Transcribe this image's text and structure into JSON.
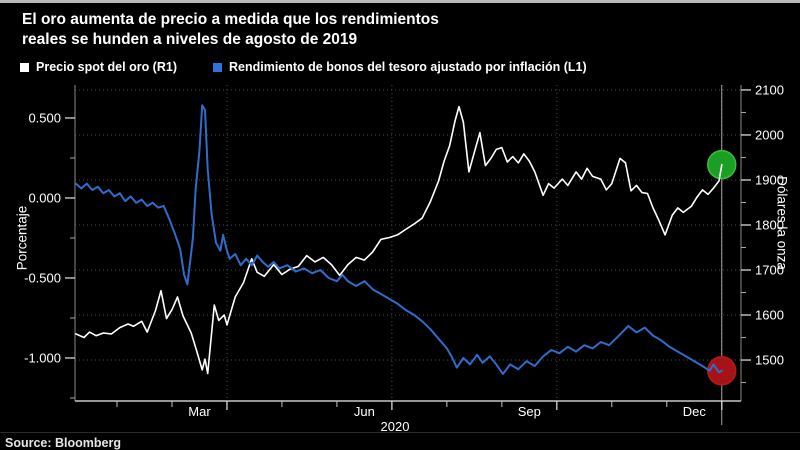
{
  "header": {
    "title_line1": "El oro aumenta de precio a medida que los rendimientos",
    "title_line2": "reales se hunden a niveles de agosto de 2019"
  },
  "legend": {
    "items": [
      {
        "label": "Precio spot del oro (R1)",
        "swatch_color": "#ffffff"
      },
      {
        "label": "Rendimiento de bonos del tesoro ajustado por inflación (L1)",
        "swatch_color": "#2f72db"
      }
    ]
  },
  "footer": {
    "source": "Source: Bloomberg"
  },
  "chart_data": {
    "type": "line",
    "title": "El oro aumenta de precio a medida que los rendimientos reales se hunden a niveles de agosto de 2019",
    "x_unit": "months since 2020-01-01",
    "x_axis": {
      "year_label": "2020",
      "range": [
        0.236,
        12.35
      ],
      "month_labels": [
        {
          "text": "Mar",
          "m": 2.5
        },
        {
          "text": "Jun",
          "m": 5.5
        },
        {
          "text": "Sep",
          "m": 8.5
        },
        {
          "text": "Dec",
          "m": 11.5
        }
      ],
      "major_tick_months": [
        3,
        6,
        9,
        12
      ],
      "minor_tick_months": [
        1,
        2,
        4,
        5,
        7,
        8,
        10,
        11
      ],
      "grid_months": [
        3,
        6,
        9,
        12
      ]
    },
    "left_axis": {
      "title": "Porcentaje",
      "range": [
        -1.269,
        0.706
      ],
      "ticks": [
        0.5,
        0.0,
        -0.5,
        -1.0
      ],
      "tick_labels": [
        "0.500",
        "0.000",
        "-0.500",
        "-1.000"
      ],
      "minor_ticks": [
        0.25,
        -0.25,
        -0.75,
        -1.25
      ]
    },
    "right_axis": {
      "title": "Dólares la onza",
      "range": [
        1409,
        2111
      ],
      "ticks": [
        2100,
        2000,
        1900,
        1800,
        1700,
        1600,
        1500
      ],
      "tick_labels": [
        "2100",
        "2000",
        "1900",
        "1800",
        "1700",
        "1600",
        "1500"
      ],
      "minor_ticks": [
        2050,
        1950,
        1850,
        1750,
        1650,
        1550,
        1450
      ],
      "gridlines": true
    },
    "crosshair_m": 12.0,
    "series": [
      {
        "name": "Precio spot del oro (R1)",
        "axis": "right",
        "color": "#ffffff",
        "width": 1.6,
        "end_marker": {
          "fill": "#1b9e24",
          "stroke": "#3bbf3b",
          "radius": 14
        },
        "points": [
          [
            0.25,
            1558
          ],
          [
            0.4,
            1550
          ],
          [
            0.5,
            1562
          ],
          [
            0.62,
            1554
          ],
          [
            0.75,
            1560
          ],
          [
            0.9,
            1558
          ],
          [
            1.05,
            1572
          ],
          [
            1.2,
            1580
          ],
          [
            1.3,
            1575
          ],
          [
            1.45,
            1586
          ],
          [
            1.55,
            1562
          ],
          [
            1.7,
            1610
          ],
          [
            1.8,
            1654
          ],
          [
            1.9,
            1592
          ],
          [
            2.0,
            1612
          ],
          [
            2.1,
            1640
          ],
          [
            2.2,
            1598
          ],
          [
            2.35,
            1560
          ],
          [
            2.45,
            1520
          ],
          [
            2.55,
            1478
          ],
          [
            2.6,
            1502
          ],
          [
            2.65,
            1470
          ],
          [
            2.77,
            1622
          ],
          [
            2.85,
            1588
          ],
          [
            2.95,
            1600
          ],
          [
            3.0,
            1578
          ],
          [
            3.15,
            1640
          ],
          [
            3.3,
            1672
          ],
          [
            3.45,
            1725
          ],
          [
            3.55,
            1695
          ],
          [
            3.68,
            1686
          ],
          [
            3.85,
            1712
          ],
          [
            4.0,
            1690
          ],
          [
            4.15,
            1702
          ],
          [
            4.3,
            1708
          ],
          [
            4.45,
            1732
          ],
          [
            4.6,
            1718
          ],
          [
            4.75,
            1728
          ],
          [
            4.9,
            1712
          ],
          [
            5.05,
            1688
          ],
          [
            5.2,
            1712
          ],
          [
            5.35,
            1728
          ],
          [
            5.5,
            1722
          ],
          [
            5.65,
            1740
          ],
          [
            5.8,
            1768
          ],
          [
            5.95,
            1772
          ],
          [
            6.1,
            1778
          ],
          [
            6.25,
            1790
          ],
          [
            6.4,
            1802
          ],
          [
            6.55,
            1815
          ],
          [
            6.7,
            1852
          ],
          [
            6.85,
            1898
          ],
          [
            6.95,
            1942
          ],
          [
            7.05,
            1976
          ],
          [
            7.15,
            2032
          ],
          [
            7.22,
            2063
          ],
          [
            7.3,
            2028
          ],
          [
            7.4,
            1918
          ],
          [
            7.5,
            1962
          ],
          [
            7.6,
            2005
          ],
          [
            7.7,
            1932
          ],
          [
            7.8,
            1948
          ],
          [
            7.9,
            1968
          ],
          [
            8.0,
            1972
          ],
          [
            8.1,
            1940
          ],
          [
            8.2,
            1952
          ],
          [
            8.3,
            1938
          ],
          [
            8.4,
            1958
          ],
          [
            8.5,
            1942
          ],
          [
            8.6,
            1918
          ],
          [
            8.75,
            1866
          ],
          [
            8.85,
            1892
          ],
          [
            8.95,
            1882
          ],
          [
            9.1,
            1902
          ],
          [
            9.2,
            1888
          ],
          [
            9.35,
            1918
          ],
          [
            9.45,
            1902
          ],
          [
            9.55,
            1926
          ],
          [
            9.65,
            1908
          ],
          [
            9.8,
            1902
          ],
          [
            9.9,
            1878
          ],
          [
            10.0,
            1892
          ],
          [
            10.15,
            1948
          ],
          [
            10.25,
            1938
          ],
          [
            10.35,
            1876
          ],
          [
            10.45,
            1888
          ],
          [
            10.55,
            1872
          ],
          [
            10.65,
            1870
          ],
          [
            10.75,
            1838
          ],
          [
            10.85,
            1812
          ],
          [
            10.97,
            1778
          ],
          [
            11.1,
            1822
          ],
          [
            11.2,
            1838
          ],
          [
            11.3,
            1828
          ],
          [
            11.45,
            1842
          ],
          [
            11.55,
            1862
          ],
          [
            11.65,
            1878
          ],
          [
            11.75,
            1868
          ],
          [
            11.85,
            1882
          ],
          [
            11.95,
            1898
          ],
          [
            12.0,
            1934
          ]
        ]
      },
      {
        "name": "Rendimiento de bonos del tesoro ajustado por inflación (L1)",
        "axis": "left",
        "color": "#2f6ccc",
        "width": 2,
        "end_marker": {
          "fill": "#a51317",
          "stroke": "#b51a1a",
          "radius": 14
        },
        "points": [
          [
            0.25,
            0.09
          ],
          [
            0.35,
            0.06
          ],
          [
            0.45,
            0.09
          ],
          [
            0.55,
            0.05
          ],
          [
            0.65,
            0.07
          ],
          [
            0.75,
            0.03
          ],
          [
            0.85,
            0.05
          ],
          [
            0.95,
            0.01
          ],
          [
            1.05,
            0.03
          ],
          [
            1.15,
            -0.02
          ],
          [
            1.25,
            0.01
          ],
          [
            1.35,
            -0.03
          ],
          [
            1.45,
            -0.01
          ],
          [
            1.55,
            -0.05
          ],
          [
            1.65,
            -0.03
          ],
          [
            1.75,
            -0.06
          ],
          [
            1.85,
            -0.05
          ],
          [
            1.95,
            -0.13
          ],
          [
            2.05,
            -0.22
          ],
          [
            2.15,
            -0.32
          ],
          [
            2.22,
            -0.48
          ],
          [
            2.28,
            -0.54
          ],
          [
            2.33,
            -0.4
          ],
          [
            2.38,
            -0.25
          ],
          [
            2.43,
            0.05
          ],
          [
            2.5,
            0.3
          ],
          [
            2.55,
            0.58
          ],
          [
            2.6,
            0.55
          ],
          [
            2.65,
            0.18
          ],
          [
            2.72,
            -0.1
          ],
          [
            2.8,
            -0.28
          ],
          [
            2.88,
            -0.33
          ],
          [
            2.93,
            -0.23
          ],
          [
            3.0,
            -0.33
          ],
          [
            3.05,
            -0.38
          ],
          [
            3.15,
            -0.35
          ],
          [
            3.25,
            -0.42
          ],
          [
            3.35,
            -0.38
          ],
          [
            3.45,
            -0.42
          ],
          [
            3.55,
            -0.36
          ],
          [
            3.65,
            -0.4
          ],
          [
            3.75,
            -0.43
          ],
          [
            3.85,
            -0.4
          ],
          [
            3.95,
            -0.44
          ],
          [
            4.1,
            -0.42
          ],
          [
            4.25,
            -0.46
          ],
          [
            4.4,
            -0.44
          ],
          [
            4.55,
            -0.47
          ],
          [
            4.7,
            -0.45
          ],
          [
            4.85,
            -0.5
          ],
          [
            5.0,
            -0.52
          ],
          [
            5.1,
            -0.48
          ],
          [
            5.2,
            -0.52
          ],
          [
            5.35,
            -0.55
          ],
          [
            5.5,
            -0.52
          ],
          [
            5.65,
            -0.57
          ],
          [
            5.8,
            -0.6
          ],
          [
            5.95,
            -0.63
          ],
          [
            6.1,
            -0.66
          ],
          [
            6.25,
            -0.7
          ],
          [
            6.4,
            -0.73
          ],
          [
            6.55,
            -0.77
          ],
          [
            6.7,
            -0.82
          ],
          [
            6.85,
            -0.88
          ],
          [
            7.0,
            -0.94
          ],
          [
            7.1,
            -1.0
          ],
          [
            7.18,
            -1.06
          ],
          [
            7.3,
            -1.0
          ],
          [
            7.42,
            -1.04
          ],
          [
            7.55,
            -0.98
          ],
          [
            7.65,
            -1.03
          ],
          [
            7.78,
            -0.99
          ],
          [
            7.9,
            -1.04
          ],
          [
            8.02,
            -1.1
          ],
          [
            8.15,
            -1.04
          ],
          [
            8.3,
            -1.07
          ],
          [
            8.45,
            -1.02
          ],
          [
            8.6,
            -1.05
          ],
          [
            8.75,
            -0.99
          ],
          [
            8.9,
            -0.95
          ],
          [
            9.05,
            -0.97
          ],
          [
            9.2,
            -0.93
          ],
          [
            9.35,
            -0.96
          ],
          [
            9.5,
            -0.92
          ],
          [
            9.65,
            -0.94
          ],
          [
            9.8,
            -0.9
          ],
          [
            9.95,
            -0.92
          ],
          [
            10.1,
            -0.87
          ],
          [
            10.3,
            -0.8
          ],
          [
            10.45,
            -0.84
          ],
          [
            10.6,
            -0.81
          ],
          [
            10.75,
            -0.86
          ],
          [
            10.9,
            -0.89
          ],
          [
            11.05,
            -0.93
          ],
          [
            11.2,
            -0.96
          ],
          [
            11.35,
            -0.99
          ],
          [
            11.5,
            -1.02
          ],
          [
            11.65,
            -1.05
          ],
          [
            11.78,
            -1.08
          ],
          [
            11.85,
            -1.04
          ],
          [
            11.95,
            -1.09
          ],
          [
            12.0,
            -1.08
          ]
        ]
      }
    ]
  }
}
